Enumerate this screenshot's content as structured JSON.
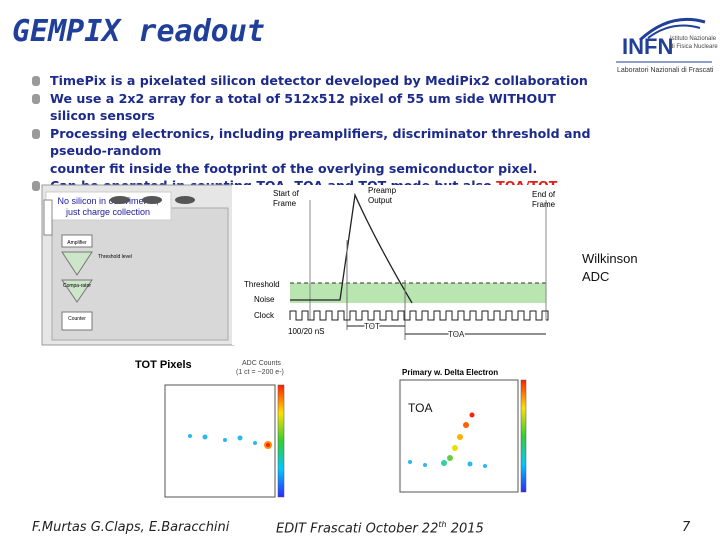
{
  "header": {
    "title": "GEMPIX readout",
    "logo": {
      "name": "INFN",
      "line1": "Istituto Nazionale",
      "line2": "di Fisica Nucleare",
      "line3": "Laboratori Nazionali di Frascati"
    }
  },
  "bullets": [
    "TimePix is a pixelated silicon detector developed by MediPix2 collaboration",
    "We use a 2x2 array for a total of 512x512 pixel of 55 um side WITHOUT silicon sensors",
    "Processing electronics, including preamplifiers, discriminator threshold and pseudo-random",
    "counter fit inside the footprint of the overlying semiconductor pixel.",
    "Can be operated in counting TOA, TOA and TOT mode but also "
  ],
  "bullet_highlight": "TOA/TOT MIXED mode",
  "pixel_diagram": {
    "note": "No silicon in our TimePix, just charge collection",
    "amplifier": "Amplifier",
    "threshold": "Threshold level",
    "comparator": "Compa-rator",
    "counter": "Counter"
  },
  "timing": {
    "start": "Start of Frame",
    "preamp": "Preamp Output",
    "end": "End of Frame",
    "threshold": "Threshold",
    "noise": "Noise",
    "clock": "Clock",
    "period": "100/20 nS",
    "tot": "TOT",
    "toa": "TOA"
  },
  "side_label": "Wilkinson ADC",
  "plot_left": {
    "title": "TOT Pixels",
    "scale1": "ADC Counts",
    "scale2": "(1 ct = ~200 e-)"
  },
  "plot_right": {
    "title": "Primary w. Delta Electron",
    "label": "TOA"
  },
  "footer": {
    "authors": "F.Murtas G.Claps, E.Baracchini",
    "event": "EDIT Frascati October 22",
    "event_sup": "th",
    "event_year": " 2015",
    "page": "7"
  }
}
